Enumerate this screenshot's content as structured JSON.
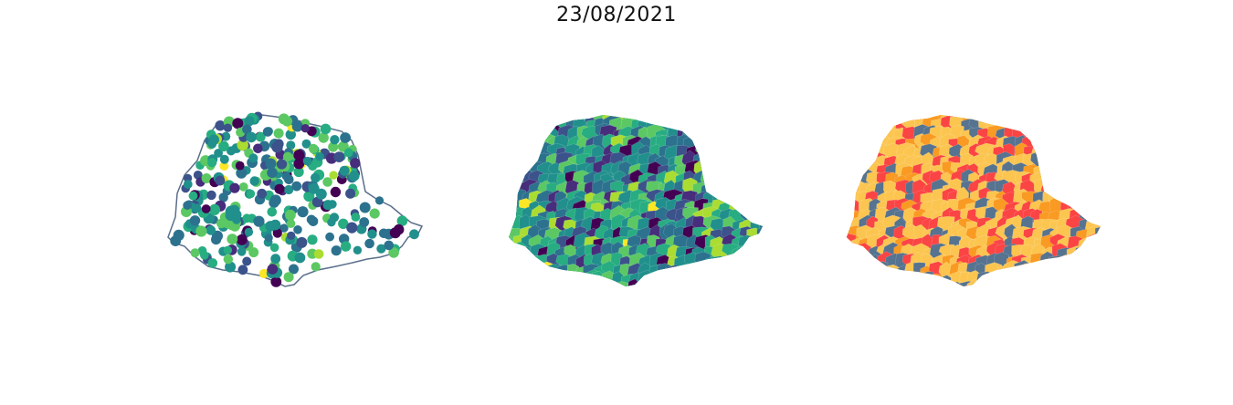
{
  "title": "23/08/2021",
  "maps": [
    {
      "id": "points",
      "type": "point-map",
      "outline_color": "#5a6f8a",
      "colormap": "viridis"
    },
    {
      "id": "choropleth",
      "type": "choropleth",
      "colormap": "viridis"
    },
    {
      "id": "classified",
      "type": "choropleth-classified",
      "class_colors": [
        "#fcc550",
        "#fb4444",
        "#f99a23",
        "#567390"
      ]
    }
  ]
}
